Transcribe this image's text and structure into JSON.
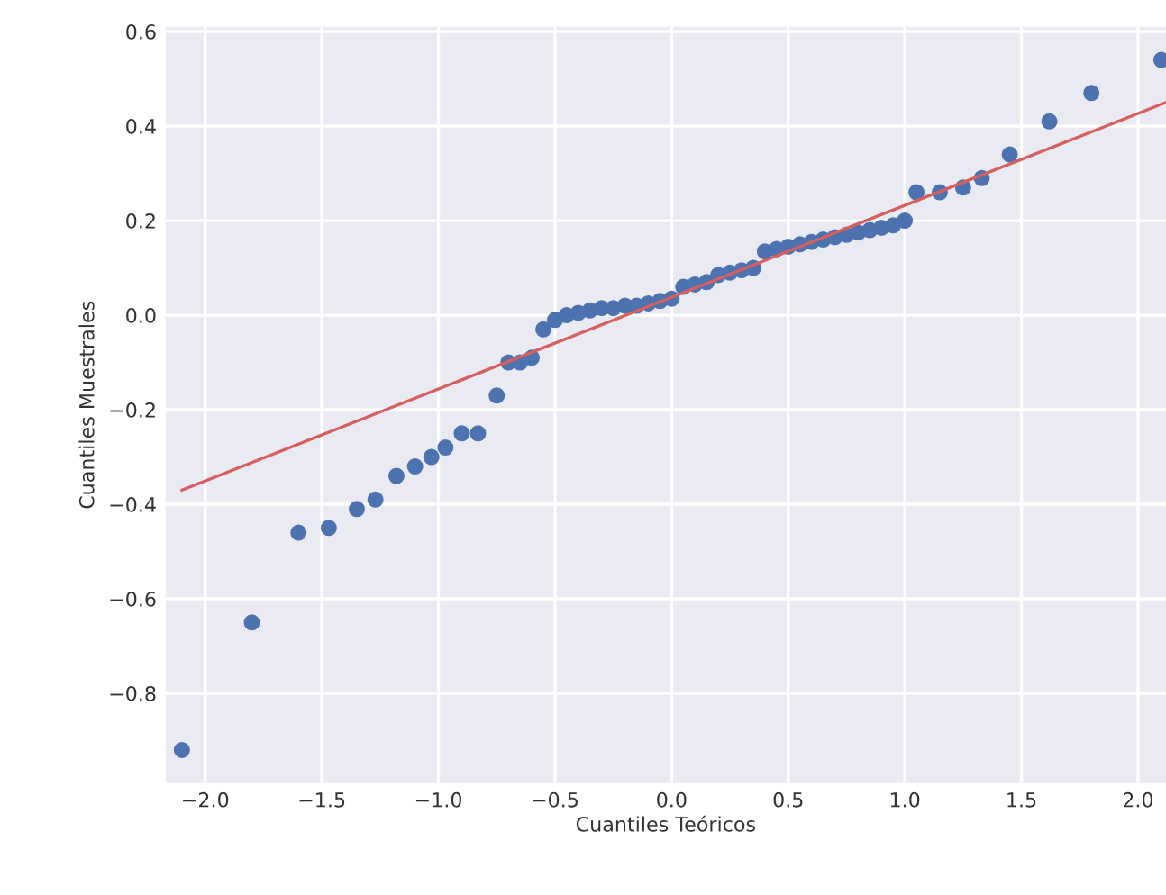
{
  "chart_data": {
    "type": "scatter",
    "xlabel": "Cuantiles Teóricos",
    "ylabel": "Cuantiles Muestrales",
    "series": [
      {
        "color": "#4c72b0",
        "marker": "circle",
        "x": [
          -2.1,
          -1.8,
          -1.6,
          -1.47,
          -1.35,
          -1.27,
          -1.18,
          -1.1,
          -1.03,
          -0.97,
          -0.9,
          -0.83,
          -0.75,
          -0.7,
          -0.65,
          -0.6,
          -0.55,
          -0.5,
          -0.45,
          -0.4,
          -0.35,
          -0.3,
          -0.25,
          -0.2,
          -0.15,
          -0.1,
          -0.05,
          0.0,
          0.05,
          0.1,
          0.15,
          0.2,
          0.25,
          0.3,
          0.35,
          0.4,
          0.45,
          0.5,
          0.55,
          0.6,
          0.65,
          0.7,
          0.75,
          0.8,
          0.85,
          0.9,
          0.95,
          1.0,
          1.05,
          1.15,
          1.25,
          1.33,
          1.45,
          1.62,
          1.8,
          2.1
        ],
        "values": [
          -0.92,
          -0.65,
          -0.46,
          -0.45,
          -0.41,
          -0.39,
          -0.34,
          -0.32,
          -0.3,
          -0.28,
          -0.25,
          -0.25,
          -0.17,
          -0.1,
          -0.1,
          -0.09,
          -0.03,
          -0.01,
          0.0,
          0.005,
          0.01,
          0.015,
          0.015,
          0.02,
          0.02,
          0.025,
          0.03,
          0.035,
          0.06,
          0.065,
          0.07,
          0.085,
          0.09,
          0.095,
          0.1,
          0.135,
          0.14,
          0.145,
          0.15,
          0.155,
          0.16,
          0.165,
          0.17,
          0.175,
          0.18,
          0.185,
          0.19,
          0.2,
          0.26,
          0.26,
          0.27,
          0.29,
          0.34,
          0.41,
          0.47,
          0.54
        ]
      },
      {
        "type": "line",
        "marker": "none",
        "color": "#d65f5f",
        "x": [
          -2.1,
          2.12
        ],
        "values": [
          -0.37,
          0.45
        ]
      }
    ],
    "xlim": [
      -2.17,
      2.12
    ],
    "ylim": [
      -0.99,
      0.61
    ],
    "xticks": [
      {
        "value": -2,
        "label": "−2.0"
      },
      {
        "value": -1.5,
        "label": "−1.5"
      },
      {
        "value": -1,
        "label": "−1.0"
      },
      {
        "value": -0.5,
        "label": "−0.5"
      },
      {
        "value": 0,
        "label": "0.0"
      },
      {
        "value": 0.5,
        "label": "0.5"
      },
      {
        "value": 1,
        "label": "1.0"
      },
      {
        "value": 1.5,
        "label": "1.5"
      },
      {
        "value": 2,
        "label": "2.0"
      }
    ],
    "yticks": [
      {
        "value": -0.8,
        "label": "−0.8"
      },
      {
        "value": -0.6,
        "label": "−0.6"
      },
      {
        "value": -0.4,
        "label": "−0.4"
      },
      {
        "value": -0.2,
        "label": "−0.2"
      },
      {
        "value": 0,
        "label": "0.0"
      },
      {
        "value": 0.2,
        "label": "0.2"
      },
      {
        "value": 0.4,
        "label": "0.4"
      },
      {
        "value": 0.6,
        "label": "0.6"
      }
    ],
    "grid": true,
    "line_style": "solid"
  }
}
